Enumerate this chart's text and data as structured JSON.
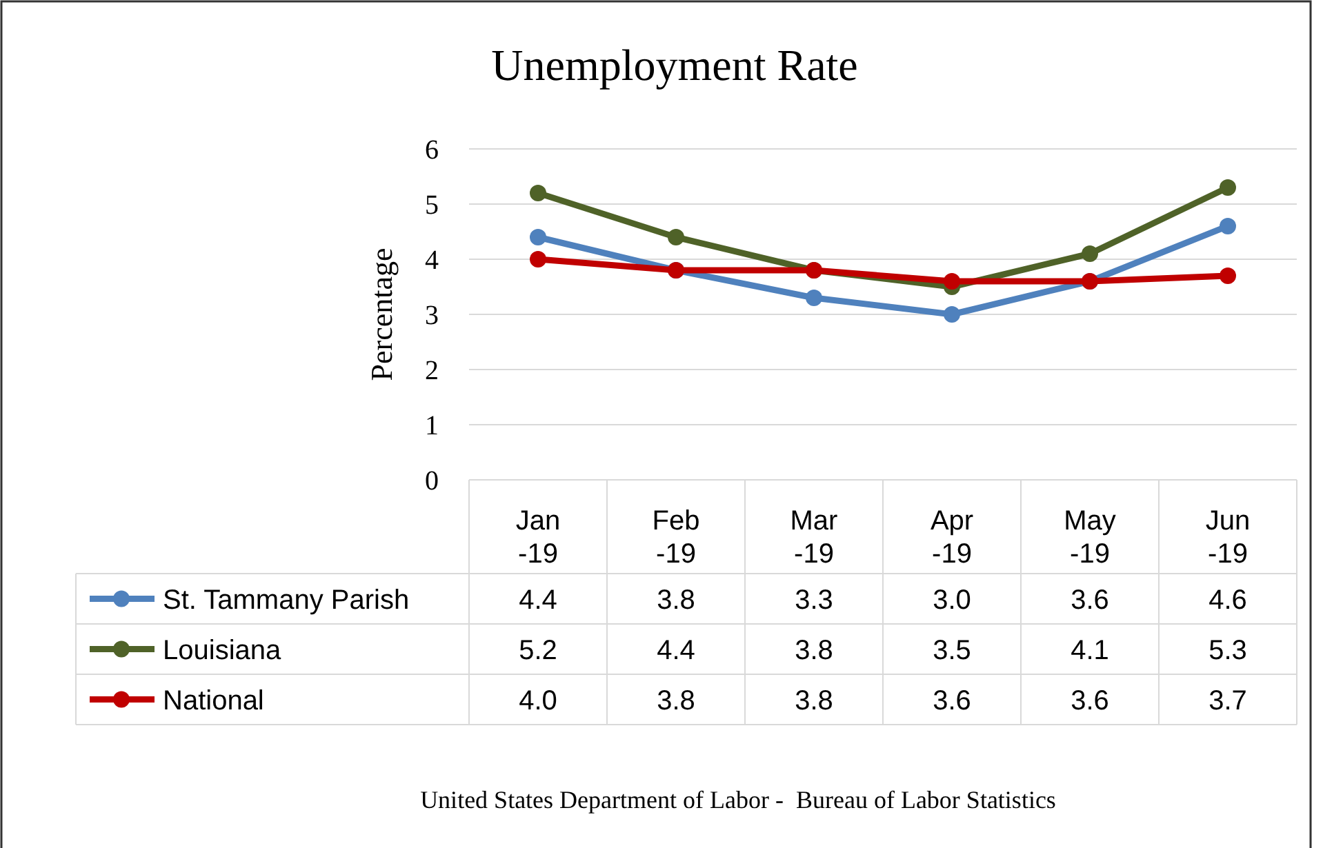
{
  "chart_data": {
    "type": "line",
    "title": "Unemployment Rate",
    "ylabel": "Percentage",
    "categories": [
      "Jan-19",
      "Feb-19",
      "Mar-19",
      "Apr-19",
      "May-19",
      "Jun-19"
    ],
    "series": [
      {
        "name": "St. Tammany Parish",
        "color": "#4f81bd",
        "values": [
          4.4,
          3.8,
          3.3,
          3.0,
          3.6,
          4.6
        ],
        "value_labels": [
          "4.4",
          "3.8",
          "3.3",
          "3.0",
          "3.6",
          "4.6"
        ]
      },
      {
        "name": "Louisiana",
        "color": "#4f6228",
        "values": [
          5.2,
          4.4,
          3.8,
          3.5,
          4.1,
          5.3
        ],
        "value_labels": [
          "5.2",
          "4.4",
          "3.8",
          "3.5",
          "4.1",
          "5.3"
        ]
      },
      {
        "name": "National",
        "color": "#c00000",
        "values": [
          4.0,
          3.8,
          3.8,
          3.6,
          3.6,
          3.7
        ],
        "value_labels": [
          "4.0",
          "3.8",
          "3.8",
          "3.6",
          "3.6",
          "3.7"
        ]
      }
    ],
    "ylim": [
      0,
      6
    ],
    "yticks": [
      0,
      1,
      2,
      3,
      4,
      5,
      6
    ],
    "grid": "y",
    "marker": "circle",
    "line_style": "solid",
    "legend": "bottom left",
    "annotations": [
      "United States Department of Labor -  Bureau of Labor Statistics"
    ]
  }
}
